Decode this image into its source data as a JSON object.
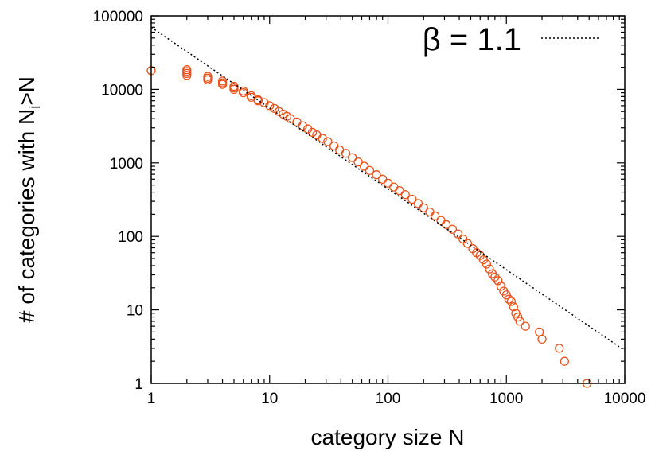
{
  "chart_data": {
    "type": "scatter",
    "title": "",
    "xlabel": "category size N",
    "ylabel_main": "# of categories with N",
    "ylabel_sub": "i",
    "ylabel_tail": ">N",
    "xscale": "log",
    "yscale": "log",
    "xlim": [
      1,
      10000
    ],
    "ylim": [
      1,
      100000
    ],
    "x_ticks": [
      {
        "value": 1,
        "label": "1"
      },
      {
        "value": 10,
        "label": "10"
      },
      {
        "value": 100,
        "label": "100"
      },
      {
        "value": 1000,
        "label": "1000"
      },
      {
        "value": 10000,
        "label": "10000"
      }
    ],
    "y_ticks": [
      {
        "value": 1,
        "label": "1"
      },
      {
        "value": 10,
        "label": "10"
      },
      {
        "value": 100,
        "label": "100"
      },
      {
        "value": 1000,
        "label": "1000"
      },
      {
        "value": 10000,
        "label": "10000"
      },
      {
        "value": 100000,
        "label": "100000"
      }
    ],
    "grid": false,
    "legend_position": "top-right",
    "colors": {
      "points": "#e8531c",
      "fit": "#000000"
    },
    "series": [
      {
        "kind": "points",
        "marker": "open-circle",
        "points": [
          [
            1,
            18000
          ],
          [
            2,
            18500
          ],
          [
            2,
            17500
          ],
          [
            2,
            16500
          ],
          [
            2,
            15500
          ],
          [
            3,
            15000
          ],
          [
            3,
            14200
          ],
          [
            3,
            13500
          ],
          [
            4,
            13000
          ],
          [
            4,
            12300
          ],
          [
            4,
            11700
          ],
          [
            5,
            11000
          ],
          [
            5,
            10500
          ],
          [
            5,
            10000
          ],
          [
            6,
            9500
          ],
          [
            6,
            9000
          ],
          [
            7,
            8200
          ],
          [
            7,
            7800
          ],
          [
            8,
            7200
          ],
          [
            8,
            7000
          ],
          [
            9,
            6600
          ],
          [
            10,
            6000
          ],
          [
            11,
            5500
          ],
          [
            12,
            5000
          ],
          [
            13,
            4600
          ],
          [
            14,
            4300
          ],
          [
            15,
            4000
          ],
          [
            17,
            3600
          ],
          [
            19,
            3200
          ],
          [
            21,
            2900
          ],
          [
            23,
            2600
          ],
          [
            25,
            2400
          ],
          [
            28,
            2150
          ],
          [
            31,
            1950
          ],
          [
            35,
            1700
          ],
          [
            39,
            1500
          ],
          [
            44,
            1350
          ],
          [
            50,
            1180
          ],
          [
            56,
            1030
          ],
          [
            63,
            900
          ],
          [
            70,
            790
          ],
          [
            80,
            690
          ],
          [
            90,
            600
          ],
          [
            100,
            530
          ],
          [
            112,
            470
          ],
          [
            125,
            420
          ],
          [
            140,
            370
          ],
          [
            160,
            320
          ],
          [
            180,
            280
          ],
          [
            200,
            245
          ],
          [
            225,
            215
          ],
          [
            250,
            190
          ],
          [
            280,
            165
          ],
          [
            310,
            145
          ],
          [
            350,
            125
          ],
          [
            390,
            108
          ],
          [
            430,
            92
          ],
          [
            470,
            80
          ],
          [
            520,
            68
          ],
          [
            560,
            60
          ],
          [
            600,
            55
          ],
          [
            640,
            48
          ],
          [
            680,
            42
          ],
          [
            720,
            36
          ],
          [
            760,
            31
          ],
          [
            800,
            28
          ],
          [
            850,
            25
          ],
          [
            900,
            21
          ],
          [
            950,
            18
          ],
          [
            1000,
            16
          ],
          [
            1050,
            14
          ],
          [
            1100,
            13
          ],
          [
            1150,
            11
          ],
          [
            1200,
            9
          ],
          [
            1250,
            8
          ],
          [
            1300,
            7
          ],
          [
            1450,
            6
          ],
          [
            1900,
            5
          ],
          [
            2000,
            4
          ],
          [
            2800,
            3
          ],
          [
            3100,
            2
          ],
          [
            4800,
            1
          ]
        ]
      },
      {
        "name": "β =  1.1",
        "kind": "fit-line",
        "style": "dotted",
        "exponent": 1.1,
        "line": [
          [
            1,
            70000
          ],
          [
            10000,
            2.8
          ]
        ]
      }
    ]
  }
}
